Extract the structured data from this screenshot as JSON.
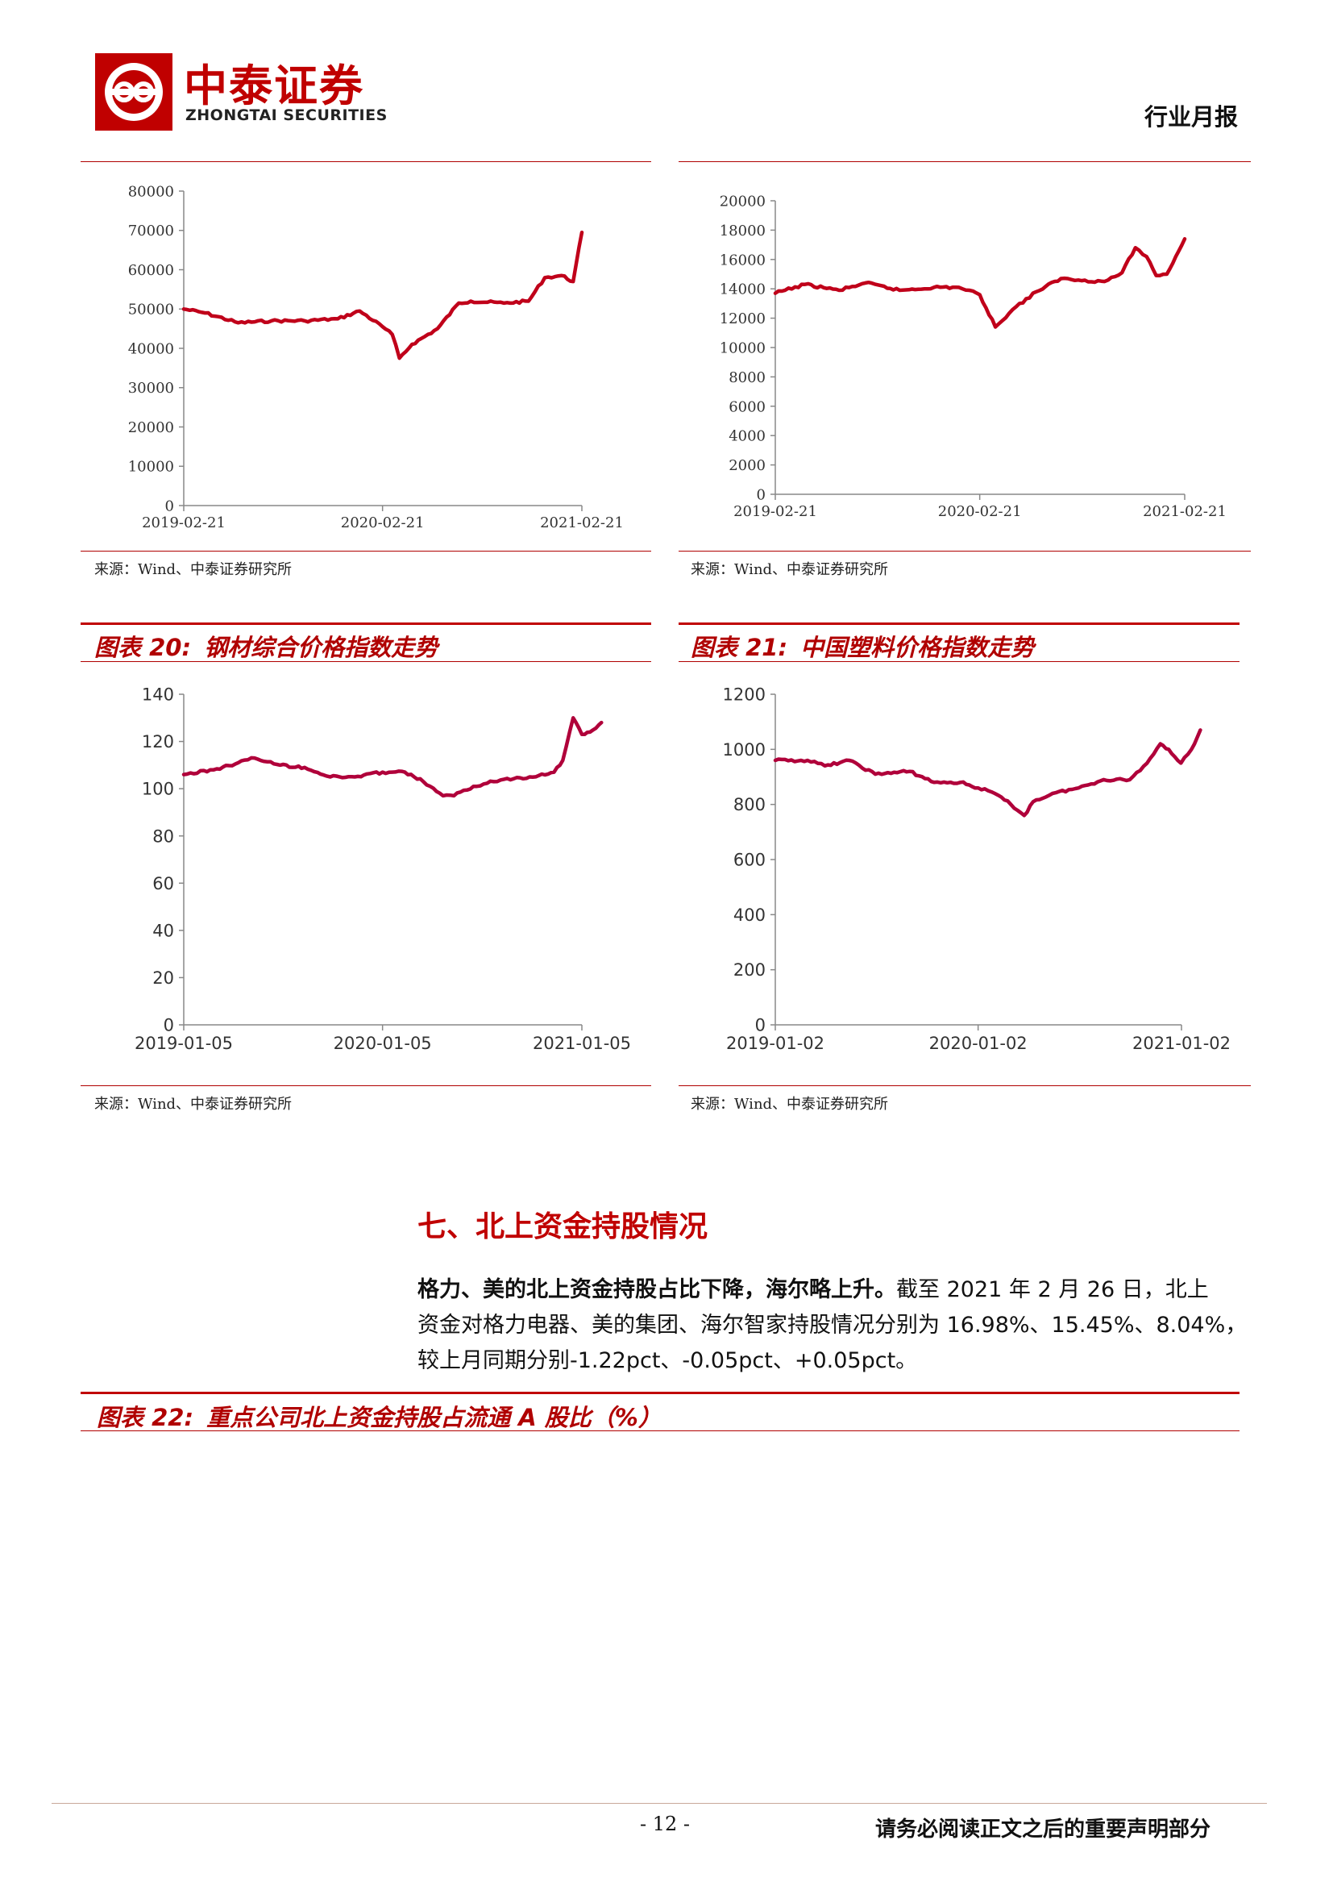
{
  "header": {
    "company_cn": "中泰证券",
    "company_en": "ZHONGTAI SECURITIES",
    "doc_type": "行业月报"
  },
  "colors": {
    "brand_red": "#c00000",
    "line_red": "#c0001a",
    "line_crimson": "#b0003a"
  },
  "charts": [
    {
      "title": "",
      "source": "来源：Wind、中泰证券研究所",
      "chart_data": {
        "type": "line",
        "ylim": [
          0,
          80000
        ],
        "yticks": [
          "0",
          "10000",
          "20000",
          "30000",
          "40000",
          "50000",
          "60000",
          "70000",
          "80000"
        ],
        "xlim": [
          "2019-02-21",
          "2021-02-21"
        ],
        "xticks": [
          "2019-02-21",
          "2020-02-21",
          "2021-02-21"
        ],
        "series": [
          {
            "x": [
              "2019-02-21",
              "2019-04-01",
              "2019-06-01",
              "2019-08-01",
              "2019-10-01",
              "2019-12-01",
              "2020-01-10",
              "2020-02-21",
              "2020-03-10",
              "2020-03-23",
              "2020-04-15",
              "2020-06-01",
              "2020-07-10",
              "2020-08-01",
              "2020-10-01",
              "2020-11-15",
              "2020-12-15",
              "2021-01-15",
              "2021-02-05",
              "2021-02-21"
            ],
            "y": [
              50000,
              49000,
              46500,
              47000,
              47000,
              47500,
              49500,
              45500,
              43500,
              37500,
              41000,
              45000,
              51500,
              52000,
              51500,
              52000,
              58000,
              58500,
              57000,
              69500
            ]
          }
        ]
      }
    },
    {
      "title": "",
      "source": "来源：Wind、中泰证券研究所",
      "chart_data": {
        "type": "line",
        "ylim": [
          0,
          20000
        ],
        "yticks": [
          "0",
          "2000",
          "4000",
          "6000",
          "8000",
          "10000",
          "12000",
          "14000",
          "16000",
          "18000",
          "20000"
        ],
        "xlim": [
          "2019-02-21",
          "2021-02-21"
        ],
        "xticks": [
          "2019-02-21",
          "2020-02-21",
          "2021-02-21"
        ],
        "series": [
          {
            "x": [
              "2019-02-21",
              "2019-04-15",
              "2019-06-15",
              "2019-08-01",
              "2019-10-01",
              "2019-12-01",
              "2020-01-15",
              "2020-02-21",
              "2020-03-20",
              "2020-04-20",
              "2020-06-01",
              "2020-07-15",
              "2020-08-15",
              "2020-10-01",
              "2020-11-01",
              "2020-11-25",
              "2020-12-15",
              "2021-01-01",
              "2021-01-20",
              "2021-02-05",
              "2021-02-21"
            ],
            "y": [
              13700,
              14300,
              13900,
              14400,
              13900,
              14100,
              14100,
              13600,
              11400,
              12600,
              13800,
              14700,
              14600,
              14500,
              15100,
              16800,
              16200,
              14900,
              15000,
              16200,
              17400
            ]
          }
        ]
      }
    },
    {
      "title_prefix": "图表 20:",
      "title": "钢材综合价格指数走势",
      "source": "来源：Wind、中泰证券研究所",
      "chart_data": {
        "type": "line",
        "ylim": [
          0,
          140
        ],
        "yticks": [
          "0",
          "20",
          "40",
          "60",
          "80",
          "100",
          "120",
          "140"
        ],
        "xlim": [
          "2019-01-05",
          "2021-01-05"
        ],
        "xticks": [
          "2019-01-05",
          "2020-01-05",
          "2021-01-05"
        ],
        "series": [
          {
            "x": [
              "2019-01-05",
              "2019-03-01",
              "2019-04-15",
              "2019-05-15",
              "2019-07-01",
              "2019-08-15",
              "2019-10-01",
              "2019-11-15",
              "2020-01-05",
              "2020-02-15",
              "2020-03-20",
              "2020-04-25",
              "2020-05-15",
              "2020-06-20",
              "2020-08-15",
              "2020-10-01",
              "2020-11-15",
              "2020-12-01",
              "2020-12-20",
              "2021-01-05",
              "2021-01-20",
              "2021-02-10"
            ],
            "y": [
              106,
              108,
              111,
              113,
              110,
              109,
              105,
              105,
              107,
              107,
              103,
              97,
              97,
              101,
              104,
              105,
              107,
              112,
              130,
              123,
              124,
              128
            ]
          }
        ]
      }
    },
    {
      "title_prefix": "图表 21:",
      "title": "中国塑料价格指数走势",
      "source": "来源：Wind、中泰证券研究所",
      "chart_data": {
        "type": "line",
        "ylim": [
          0,
          1200
        ],
        "yticks": [
          "0",
          "200",
          "400",
          "600",
          "800",
          "1000",
          "1200"
        ],
        "xlim": [
          "2019-01-02",
          "2021-01-02"
        ],
        "xticks": [
          "2019-01-02",
          "2020-01-02",
          "2021-01-02"
        ],
        "series": [
          {
            "x": [
              "2019-01-02",
              "2019-03-01",
              "2019-04-01",
              "2019-05-15",
              "2019-07-01",
              "2019-09-01",
              "2019-10-15",
              "2019-12-01",
              "2020-01-02",
              "2020-02-01",
              "2020-03-01",
              "2020-03-25",
              "2020-04-10",
              "2020-05-15",
              "2020-07-01",
              "2020-08-15",
              "2020-10-01",
              "2020-11-01",
              "2020-11-25",
              "2020-12-10",
              "2021-01-01",
              "2021-01-20",
              "2021-02-05"
            ],
            "y": [
              960,
              960,
              940,
              960,
              910,
              920,
              880,
              880,
              860,
              840,
              800,
              760,
              810,
              840,
              860,
              890,
              890,
              950,
              1020,
              1000,
              950,
              1000,
              1070
            ]
          }
        ]
      }
    }
  ],
  "section": {
    "title": "七、北上资金持股情况",
    "para_bold": "格力、美的北上资金持股占比下降，海尔略上升。",
    "para_line1_rest": "截至 2021 年 2 月 26 日，北上",
    "para_line2": "资金对格力电器、美的集团、海尔智家持股情况分别为 16.98%、15.45%、8.04%，",
    "para_line3": "较上月同期分别-1.22pct、-0.05pct、+0.05pct。"
  },
  "fig22": {
    "title_prefix": "图表 22:",
    "title": "重点公司北上资金持股占流通 A 股比（%）"
  },
  "footer": {
    "page": "- 12 -",
    "note": "请务必阅读正文之后的重要声明部分"
  }
}
